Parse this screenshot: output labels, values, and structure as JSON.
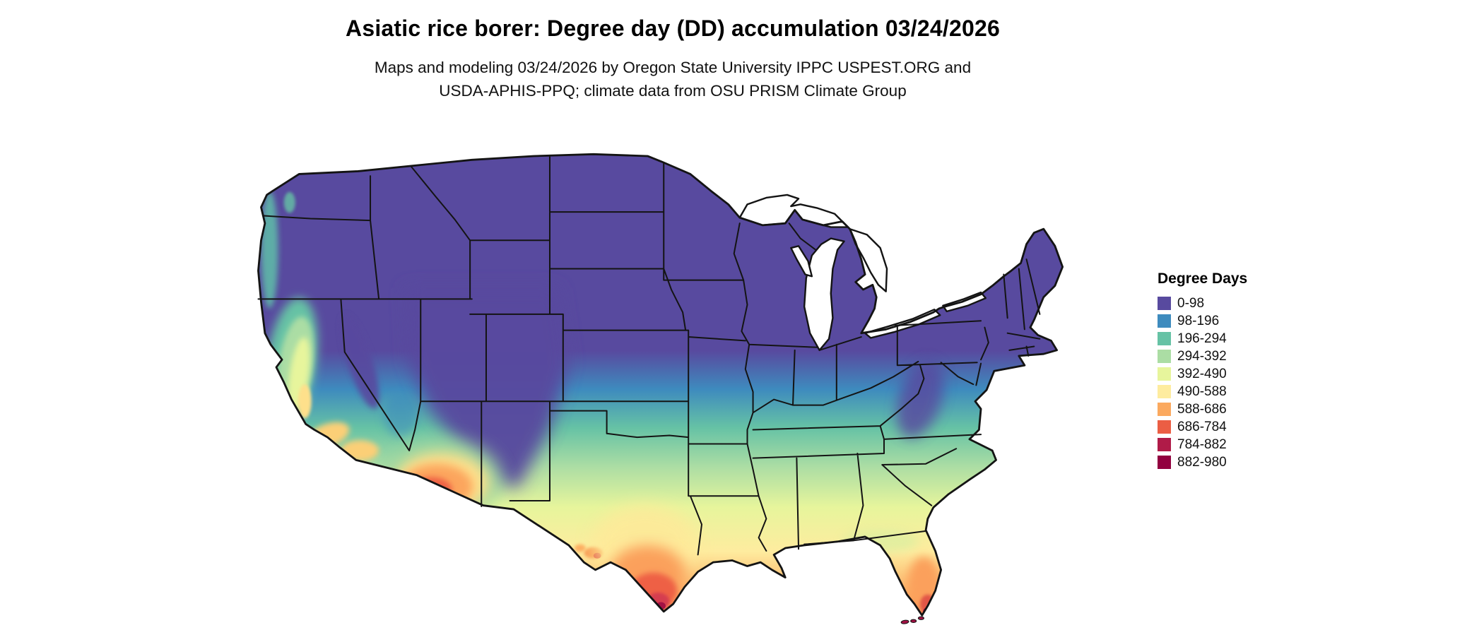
{
  "header": {
    "title": "Asiatic rice borer: Degree day (DD) accumulation 03/24/2026",
    "subtitle_line1": "Maps and modeling 03/24/2026 by Oregon State University IPPC USPEST.ORG and",
    "subtitle_line2": "USDA-APHIS-PPQ; climate data from OSU PRISM Climate Group"
  },
  "legend": {
    "title": "Degree Days",
    "items": [
      {
        "label": "0-98",
        "color": "#584A9F"
      },
      {
        "label": "98-196",
        "color": "#3E8BBE"
      },
      {
        "label": "196-294",
        "color": "#66C2A5"
      },
      {
        "label": "294-392",
        "color": "#ABDDA4"
      },
      {
        "label": "392-490",
        "color": "#E7F59C"
      },
      {
        "label": "490-588",
        "color": "#FEEC9F"
      },
      {
        "label": "588-686",
        "color": "#FBA95F"
      },
      {
        "label": "686-784",
        "color": "#EB5E44"
      },
      {
        "label": "784-882",
        "color": "#B01B48"
      },
      {
        "label": "882-980",
        "color": "#92003F"
      }
    ]
  }
}
